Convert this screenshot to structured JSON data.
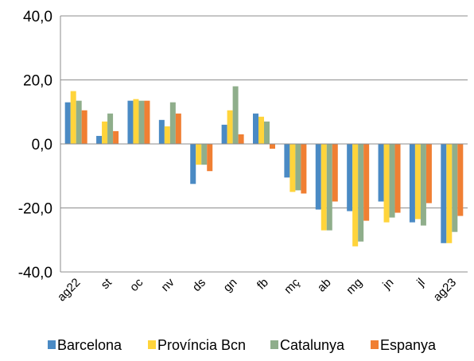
{
  "chart_data": {
    "type": "bar",
    "categories": [
      "ag22",
      "st",
      "oc",
      "nv",
      "ds",
      "gn",
      "fb",
      "mç",
      "ab",
      "mg",
      "jn",
      "jl",
      "ag23"
    ],
    "series": [
      {
        "name": "Barcelona",
        "color": "#4a8ac4",
        "values": [
          13.0,
          2.5,
          13.5,
          7.5,
          -12.5,
          6.0,
          9.5,
          -10.5,
          -20.5,
          -21.0,
          -18.0,
          -24.5,
          -31.0
        ]
      },
      {
        "name": "Província Bcn",
        "color": "#ffd43b",
        "values": [
          16.5,
          7.0,
          14.0,
          5.5,
          -6.5,
          10.5,
          8.5,
          -15.0,
          -27.0,
          -32.0,
          -24.5,
          -23.5,
          -31.0
        ]
      },
      {
        "name": "Catalunya",
        "color": "#8fae8b",
        "values": [
          13.5,
          9.5,
          13.5,
          13.0,
          -6.5,
          18.0,
          7.0,
          -14.5,
          -27.0,
          -30.5,
          -23.0,
          -25.5,
          -27.5
        ]
      },
      {
        "name": "Espanya",
        "color": "#f07f33",
        "values": [
          10.5,
          4.0,
          13.5,
          9.5,
          -8.5,
          3.0,
          -1.5,
          -15.5,
          -18.0,
          -24.0,
          -21.5,
          -18.5,
          -22.5
        ]
      }
    ],
    "ylim": [
      -40,
      40
    ],
    "yticks": [
      "40,0",
      "20,0",
      "0,0",
      "-20,0",
      "-40,0"
    ],
    "grid": true,
    "legend_position": "bottom"
  }
}
